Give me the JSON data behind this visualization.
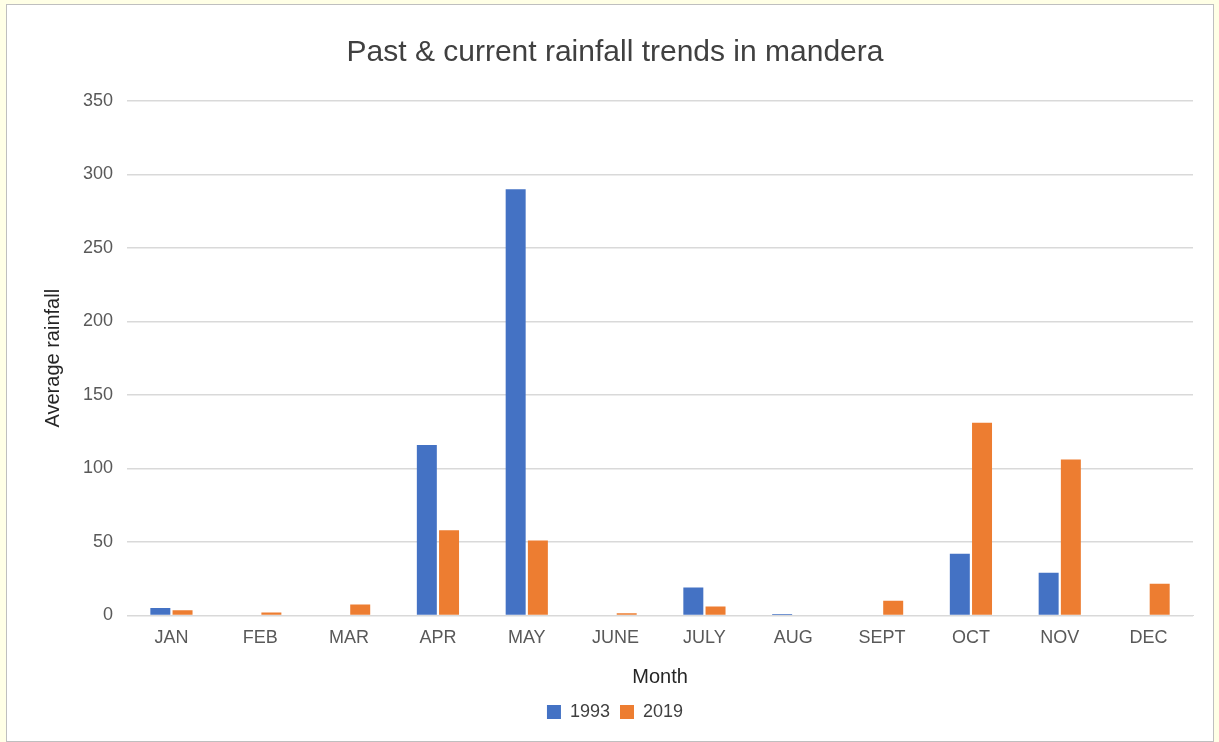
{
  "chart_data": {
    "type": "bar",
    "title": "Past & current rainfall trends in mandera",
    "xlabel": "Month",
    "ylabel": "Average rainfall",
    "categories": [
      "JAN",
      "FEB",
      "MAR",
      "APR",
      "MAY",
      "JUNE",
      "JULY",
      "AUG",
      "SEPT",
      "OCT",
      "NOV",
      "DEC"
    ],
    "series": [
      {
        "name": "1993",
        "color": "#4472c4",
        "values": [
          5,
          null,
          0,
          116,
          290,
          null,
          19,
          1,
          0,
          42,
          29,
          0
        ]
      },
      {
        "name": "2019",
        "color": "#ed7d31",
        "values": [
          3.5,
          2,
          7.5,
          58,
          51,
          1.5,
          6,
          0,
          10,
          131,
          106,
          21.5
        ]
      }
    ],
    "ylim": [
      0,
      350
    ],
    "yticks": [
      0,
      50,
      100,
      150,
      200,
      250,
      300,
      350
    ],
    "grid": "y",
    "legend": "bottom"
  }
}
